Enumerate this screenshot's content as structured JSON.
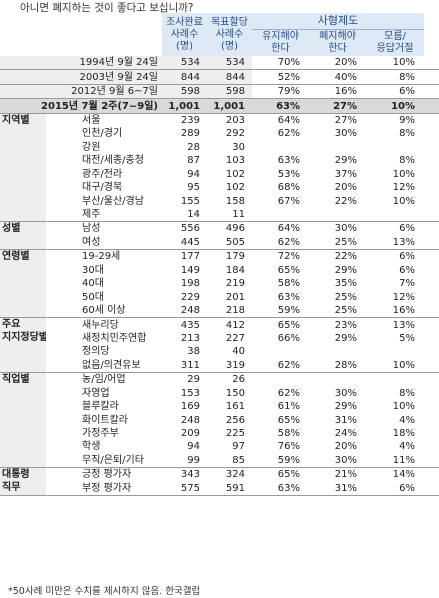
{
  "question": "아니면 폐지하는 것이 좋다고 보십니까?",
  "headers": {
    "survey_n": "조사완료 사례수 (명)",
    "survey_n_lines": [
      "조사완료",
      "사례수",
      "(명)"
    ],
    "target_n_lines": [
      "목표할당",
      "사례수",
      "(명)"
    ],
    "death_penalty": "사형제도",
    "keep_lines": [
      "유지해야",
      "한다"
    ],
    "abolish_lines": [
      "폐지해야",
      "한다"
    ],
    "unknown_lines": [
      "모름/",
      "응답거절"
    ]
  },
  "trend": [
    {
      "label": "1994년 9월 24일",
      "n": "534",
      "t": "534",
      "keep": "70%",
      "abolish": "20%",
      "unknown": "10%"
    },
    {
      "label": "2003년 9월 24일",
      "n": "844",
      "t": "844",
      "keep": "52%",
      "abolish": "40%",
      "unknown": "8%"
    },
    {
      "label": "2012년 9월 6~7일",
      "n": "598",
      "t": "598",
      "keep": "79%",
      "abolish": "16%",
      "unknown": "6%"
    }
  ],
  "current": {
    "label": "2015년 7월 2주(7~9일)",
    "n": "1,001",
    "t": "1,001",
    "keep": "63%",
    "abolish": "27%",
    "unknown": "10%"
  },
  "groups": [
    {
      "name": "지역별",
      "rows": [
        {
          "label": "서울",
          "n": "239",
          "t": "203",
          "keep": "64%",
          "abolish": "27%",
          "unknown": "9%"
        },
        {
          "label": "인천/경기",
          "n": "289",
          "t": "292",
          "keep": "62%",
          "abolish": "30%",
          "unknown": "8%"
        },
        {
          "label": "강원",
          "n": "28",
          "t": "30",
          "keep": "",
          "abolish": "",
          "unknown": ""
        },
        {
          "label": "대전/세종/충청",
          "n": "87",
          "t": "103",
          "keep": "63%",
          "abolish": "29%",
          "unknown": "8%"
        },
        {
          "label": "광주/전라",
          "n": "94",
          "t": "102",
          "keep": "53%",
          "abolish": "37%",
          "unknown": "10%"
        },
        {
          "label": "대구/경북",
          "n": "95",
          "t": "102",
          "keep": "68%",
          "abolish": "20%",
          "unknown": "12%"
        },
        {
          "label": "부산/울산/경남",
          "n": "155",
          "t": "158",
          "keep": "67%",
          "abolish": "22%",
          "unknown": "10%"
        },
        {
          "label": "제주",
          "n": "14",
          "t": "11",
          "keep": "",
          "abolish": "",
          "unknown": ""
        }
      ]
    },
    {
      "name": "성별",
      "rows": [
        {
          "label": "남성",
          "n": "556",
          "t": "496",
          "keep": "64%",
          "abolish": "30%",
          "unknown": "6%"
        },
        {
          "label": "여성",
          "n": "445",
          "t": "505",
          "keep": "62%",
          "abolish": "25%",
          "unknown": "13%"
        }
      ]
    },
    {
      "name": "연령별",
      "rows": [
        {
          "label": "19-29세",
          "n": "177",
          "t": "179",
          "keep": "72%",
          "abolish": "22%",
          "unknown": "6%"
        },
        {
          "label": "30대",
          "n": "149",
          "t": "184",
          "keep": "65%",
          "abolish": "29%",
          "unknown": "6%"
        },
        {
          "label": "40대",
          "n": "198",
          "t": "219",
          "keep": "58%",
          "abolish": "35%",
          "unknown": "7%"
        },
        {
          "label": "50대",
          "n": "229",
          "t": "201",
          "keep": "63%",
          "abolish": "25%",
          "unknown": "12%"
        },
        {
          "label": "60세 이상",
          "n": "248",
          "t": "218",
          "keep": "59%",
          "abolish": "25%",
          "unknown": "16%"
        }
      ]
    },
    {
      "name": "주요 지지정당별",
      "name_lines": [
        "주요",
        "지지정당별"
      ],
      "rows": [
        {
          "label": "새누리당",
          "n": "435",
          "t": "412",
          "keep": "65%",
          "abolish": "23%",
          "unknown": "13%"
        },
        {
          "label": "새정치민주연합",
          "n": "213",
          "t": "227",
          "keep": "66%",
          "abolish": "29%",
          "unknown": "5%"
        },
        {
          "label": "정의당",
          "n": "38",
          "t": "40",
          "keep": "",
          "abolish": "",
          "unknown": ""
        },
        {
          "label": "없음/의견유보",
          "n": "311",
          "t": "319",
          "keep": "62%",
          "abolish": "28%",
          "unknown": "10%"
        }
      ]
    },
    {
      "name": "직업별",
      "rows": [
        {
          "label": "농/임/어업",
          "n": "29",
          "t": "26",
          "keep": "",
          "abolish": "",
          "unknown": ""
        },
        {
          "label": "자영업",
          "n": "153",
          "t": "150",
          "keep": "62%",
          "abolish": "30%",
          "unknown": "8%"
        },
        {
          "label": "블루칼라",
          "n": "169",
          "t": "161",
          "keep": "61%",
          "abolish": "29%",
          "unknown": "10%"
        },
        {
          "label": "화이트칼라",
          "n": "248",
          "t": "256",
          "keep": "65%",
          "abolish": "31%",
          "unknown": "4%"
        },
        {
          "label": "가정주부",
          "n": "209",
          "t": "225",
          "keep": "58%",
          "abolish": "24%",
          "unknown": "18%"
        },
        {
          "label": "학생",
          "n": "94",
          "t": "97",
          "keep": "76%",
          "abolish": "20%",
          "unknown": "4%"
        },
        {
          "label": "무직/은퇴/기타",
          "n": "99",
          "t": "85",
          "keep": "59%",
          "abolish": "30%",
          "unknown": "11%"
        }
      ]
    },
    {
      "name": "대통령 직무",
      "name_lines": [
        "대통령",
        "직무"
      ],
      "rows": [
        {
          "label": "긍정 평가자",
          "n": "343",
          "t": "324",
          "keep": "65%",
          "abolish": "21%",
          "unknown": "14%"
        },
        {
          "label": "부정 평가자",
          "n": "575",
          "t": "591",
          "keep": "63%",
          "abolish": "31%",
          "unknown": "6%"
        }
      ]
    }
  ],
  "footnote": "*50사례 미만은 수치를 제시하지 않음. 한국갤럽"
}
